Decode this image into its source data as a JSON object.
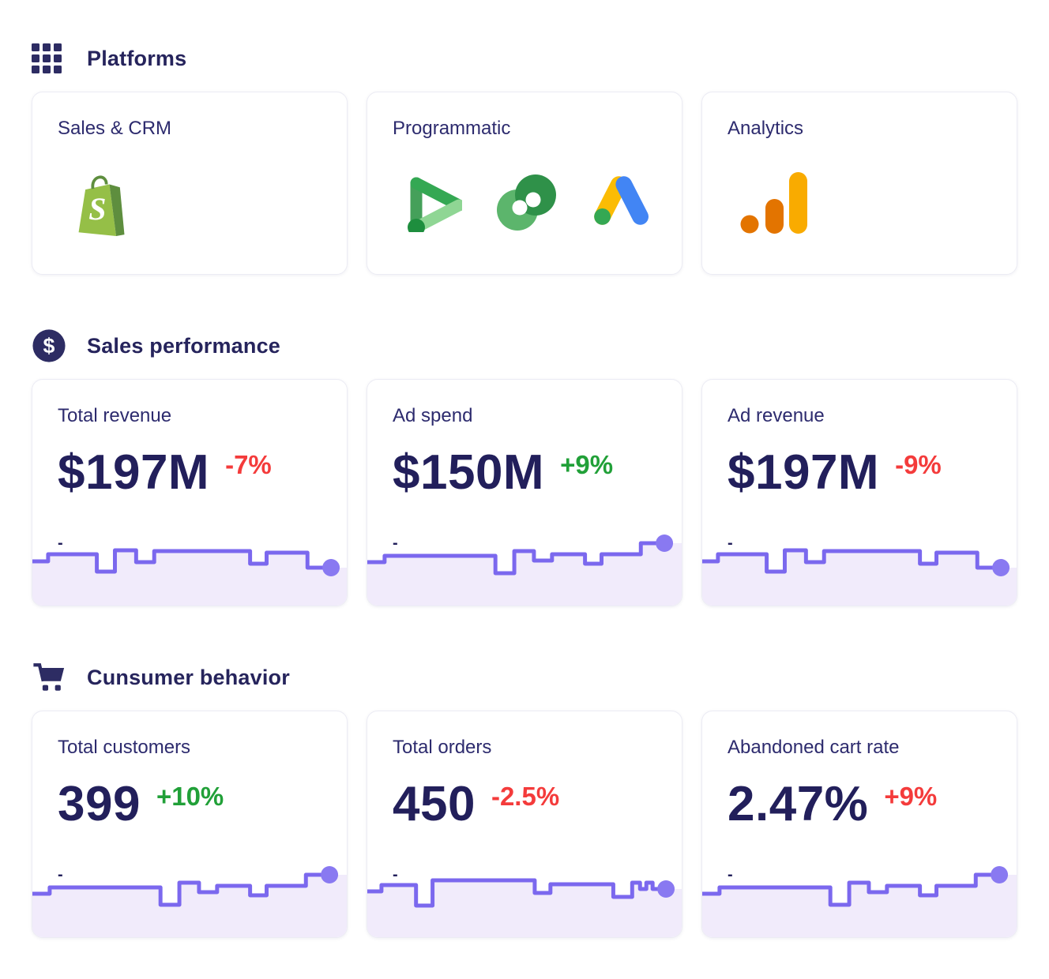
{
  "colors": {
    "navy_title": "#26245C",
    "navy_card_title": "#2D2B6E",
    "navy_value": "#221F5B",
    "icon_navy": "#2D2C63",
    "red": "#F43B3B",
    "green": "#21A038",
    "spark_line": "#7B68EE",
    "spark_fill": "#F1EBFB",
    "spark_dot": "#8979F1",
    "card_border": "#ECECF4",
    "shopify_green": "#95BF47",
    "shopify_dark_green": "#5E8E3E",
    "google_green": "#34A853",
    "google_green_light": "#8FD694",
    "google_green_mid": "#45A05A",
    "google_green_dark": "#1E8E3E",
    "cm_light_green": "#5CB56C",
    "cm_dark_green": "#2F9149",
    "ads_yellow": "#FBBC04",
    "ads_blue": "#4285F4",
    "ga_amber": "#F9AB00",
    "ga_orange": "#E37400"
  },
  "sections": [
    {
      "title": "Platforms",
      "icon": "grid-icon",
      "cards": [
        {
          "title": "Sales & CRM",
          "icons": [
            "shopify-icon"
          ]
        },
        {
          "title": "Programmatic",
          "icons": [
            "display-video-360-icon",
            "campaign-manager-icon",
            "google-ads-icon"
          ]
        },
        {
          "title": "Analytics",
          "icons": [
            "google-analytics-icon"
          ]
        }
      ]
    },
    {
      "title": "Sales performance",
      "icon": "dollar-icon",
      "cards": [
        {
          "title": "Total revenue",
          "value": "$197M",
          "delta": "-7%",
          "delta_color": "red",
          "placeholder": "-",
          "spark": "A"
        },
        {
          "title": "Ad spend",
          "value": "$150M",
          "delta": "+9%",
          "delta_color": "green",
          "placeholder": "-",
          "spark": "B"
        },
        {
          "title": "Ad revenue",
          "value": "$197M",
          "delta": "-9%",
          "delta_color": "red",
          "placeholder": "-",
          "spark": "A"
        }
      ]
    },
    {
      "title": "Cunsumer behavior",
      "icon": "cart-icon",
      "cards": [
        {
          "title": "Total customers",
          "value": "399",
          "delta": "+10%",
          "delta_color": "green",
          "placeholder": "-",
          "spark": "B"
        },
        {
          "title": "Total orders",
          "value": "450",
          "delta": "-2.5%",
          "delta_color": "red",
          "placeholder": "-",
          "spark": "C"
        },
        {
          "title": "Abandoned cart rate",
          "value": "2.47%",
          "delta": "+9%",
          "delta_color": "red",
          "placeholder": "-",
          "spark": "B"
        }
      ]
    }
  ],
  "chart_data": {
    "type": "step-line-sparklines",
    "axes": "hidden",
    "sparklines": {
      "A": {
        "points": [
          [
            0,
            44
          ],
          [
            20,
            44
          ],
          [
            20,
            35
          ],
          [
            82,
            35
          ],
          [
            82,
            57
          ],
          [
            105,
            57
          ],
          [
            105,
            30
          ],
          [
            132,
            30
          ],
          [
            132,
            45
          ],
          [
            155,
            45
          ],
          [
            155,
            31
          ],
          [
            277,
            31
          ],
          [
            277,
            47
          ],
          [
            298,
            47
          ],
          [
            298,
            33
          ],
          [
            350,
            33
          ],
          [
            350,
            52
          ],
          [
            380,
            52
          ]
        ],
        "dot": [
          380,
          52
        ]
      },
      "B": {
        "points": [
          [
            0,
            45
          ],
          [
            22,
            45
          ],
          [
            22,
            37
          ],
          [
            163,
            37
          ],
          [
            163,
            59
          ],
          [
            187,
            59
          ],
          [
            187,
            31
          ],
          [
            212,
            31
          ],
          [
            212,
            43
          ],
          [
            235,
            43
          ],
          [
            235,
            35
          ],
          [
            277,
            35
          ],
          [
            277,
            47
          ],
          [
            298,
            47
          ],
          [
            298,
            35
          ],
          [
            348,
            35
          ],
          [
            348,
            21
          ],
          [
            378,
            21
          ]
        ],
        "dot": [
          378,
          21
        ]
      },
      "C": {
        "points": [
          [
            0,
            42
          ],
          [
            18,
            42
          ],
          [
            18,
            34
          ],
          [
            62,
            34
          ],
          [
            62,
            60
          ],
          [
            83,
            60
          ],
          [
            83,
            28
          ],
          [
            213,
            28
          ],
          [
            213,
            44
          ],
          [
            233,
            44
          ],
          [
            233,
            33
          ],
          [
            313,
            33
          ],
          [
            313,
            49
          ],
          [
            337,
            49
          ],
          [
            337,
            31
          ],
          [
            347,
            31
          ],
          [
            347,
            39
          ],
          [
            355,
            39
          ],
          [
            355,
            31
          ],
          [
            363,
            31
          ],
          [
            363,
            39
          ],
          [
            374,
            39
          ]
        ],
        "dot": [
          380,
          39
        ]
      }
    }
  }
}
